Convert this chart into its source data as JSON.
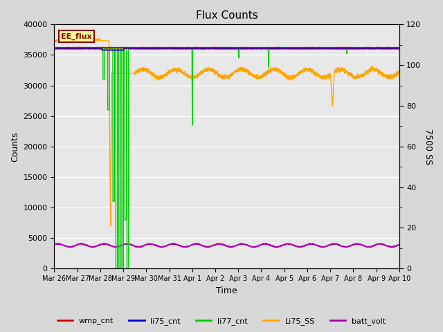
{
  "title": "Flux Counts",
  "xlabel": "Time",
  "ylabel_left": "Counts",
  "ylabel_right": "7500 SS",
  "ylim_left": [
    0,
    40000
  ],
  "ylim_right": [
    0,
    120
  ],
  "fig_bg": "#d8d8d8",
  "plot_bg": "#e8e8e8",
  "legend_label": "EE_flux",
  "series": {
    "wmp_cnt": {
      "color": "#cc0000",
      "lw": 1.2,
      "zorder": 3
    },
    "li75_cnt": {
      "color": "#0000cc",
      "lw": 1.2,
      "zorder": 3
    },
    "li77_cnt": {
      "color": "#00cc00",
      "lw": 1.0,
      "zorder": 2
    },
    "Li75_SS": {
      "color": "#ffa500",
      "lw": 1.0,
      "zorder": 2
    },
    "batt_volt": {
      "color": "#aa00aa",
      "lw": 1.0,
      "zorder": 2
    }
  },
  "xtick_labels": [
    "Mar 26",
    "Mar 27",
    "Mar 28",
    "Mar 29",
    "Mar 30",
    "Mar 31",
    "Apr 1",
    "Apr 2",
    "Apr 3",
    "Apr 4",
    "Apr 5",
    "Apr 6",
    "Apr 7",
    "Apr 8",
    "Apr 9",
    "Apr 10"
  ],
  "yticks_left": [
    0,
    5000,
    10000,
    15000,
    20000,
    25000,
    30000,
    35000,
    40000
  ],
  "yticks_right_major": [
    0,
    20,
    40,
    60,
    80,
    100,
    120
  ],
  "yticks_right_minor": [
    10,
    30,
    50,
    70,
    90,
    110
  ]
}
